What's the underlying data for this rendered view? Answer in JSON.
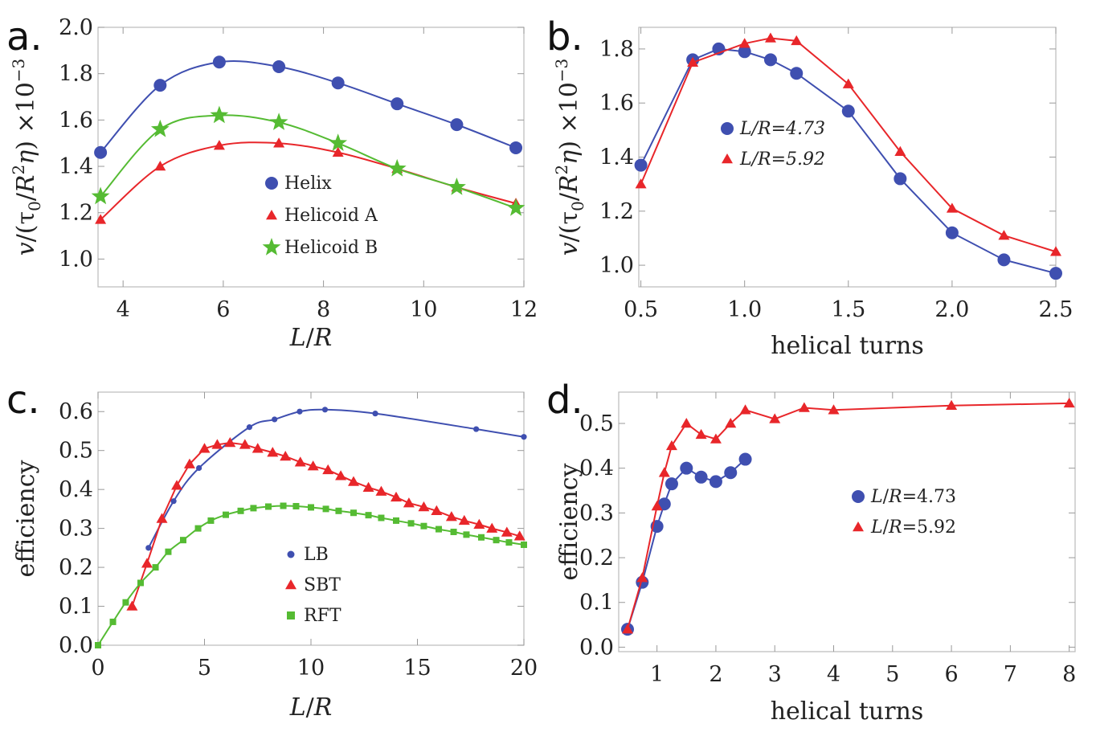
{
  "colors": {
    "blue": "#3f4fb0",
    "red": "#e8262a",
    "green": "#55bb33"
  },
  "chart_data": [
    {
      "panel_label": "a.",
      "type": "line",
      "xlabel": "L/R",
      "ylabel": "v/(τ0/R²η) ×10−3",
      "xlim": [
        3.5,
        12
      ],
      "ylim": [
        0.88,
        2.0
      ],
      "xticks": [
        4,
        6,
        8,
        10,
        12
      ],
      "yticks": [
        1.0,
        1.2,
        1.4,
        1.6,
        1.8,
        2.0
      ],
      "ytick_labels": [
        "1.0",
        "1.2",
        "1.4",
        "1.6",
        "1.8",
        "2.0"
      ],
      "legend_position": "center",
      "series": [
        {
          "name": "Helix",
          "color": "#3f4fb0",
          "marker": "circle",
          "smooth": true,
          "x": [
            3.55,
            4.74,
            5.92,
            7.11,
            8.29,
            9.47,
            10.66,
            11.84
          ],
          "y": [
            1.46,
            1.75,
            1.85,
            1.83,
            1.76,
            1.67,
            1.58,
            1.48
          ]
        },
        {
          "name": "Helicoid A",
          "color": "#e8262a",
          "marker": "triangle",
          "smooth": true,
          "x": [
            3.55,
            4.74,
            5.92,
            7.11,
            8.29,
            9.47,
            10.66,
            11.84
          ],
          "y": [
            1.17,
            1.4,
            1.49,
            1.5,
            1.46,
            1.39,
            1.31,
            1.24
          ]
        },
        {
          "name": "Helicoid B",
          "color": "#55bb33",
          "marker": "star",
          "smooth": true,
          "x": [
            3.55,
            4.74,
            5.92,
            7.11,
            8.29,
            9.47,
            10.66,
            11.84
          ],
          "y": [
            1.27,
            1.56,
            1.62,
            1.59,
            1.5,
            1.39,
            1.31,
            1.22
          ]
        }
      ]
    },
    {
      "panel_label": "b.",
      "type": "line",
      "xlabel": "helical turns",
      "ylabel": "v/(τ0/R²η) ×10−3",
      "xlim": [
        0.49,
        2.5
      ],
      "ylim": [
        0.92,
        1.88
      ],
      "xticks": [
        0.5,
        1.0,
        1.5,
        2.0,
        2.5
      ],
      "xtick_labels": [
        "0.5",
        "1.0",
        "1.5",
        "2.0",
        "2.5"
      ],
      "yticks": [
        1.0,
        1.2,
        1.4,
        1.6,
        1.8
      ],
      "ytick_labels": [
        "1.0",
        "1.2",
        "1.4",
        "1.6",
        "1.8"
      ],
      "legend_position": "center",
      "series": [
        {
          "name": "L/R=4.73",
          "color": "#3f4fb0",
          "marker": "circle",
          "x": [
            0.5,
            0.75,
            0.875,
            1.0,
            1.125,
            1.25,
            1.5,
            1.75,
            2.0,
            2.25,
            2.5
          ],
          "y": [
            1.37,
            1.76,
            1.8,
            1.79,
            1.76,
            1.71,
            1.57,
            1.32,
            1.12,
            1.02,
            0.97
          ]
        },
        {
          "name": "L/R=5.92",
          "color": "#e8262a",
          "marker": "triangle",
          "x": [
            0.5,
            0.75,
            1.0,
            1.125,
            1.25,
            1.5,
            1.75,
            2.0,
            2.25,
            2.5
          ],
          "y": [
            1.3,
            1.75,
            1.82,
            1.84,
            1.83,
            1.67,
            1.42,
            1.21,
            1.11,
            1.05
          ]
        }
      ]
    },
    {
      "panel_label": "c.",
      "type": "line",
      "xlabel": "L/R",
      "ylabel": "efficiency",
      "xlim": [
        0,
        20
      ],
      "ylim": [
        0,
        0.65
      ],
      "xticks": [
        0,
        5,
        10,
        15,
        20
      ],
      "yticks": [
        0.0,
        0.1,
        0.2,
        0.3,
        0.4,
        0.5,
        0.6
      ],
      "ytick_labels": [
        "0.0",
        "0.1",
        "0.2",
        "0.3",
        "0.4",
        "0.5",
        "0.6"
      ],
      "legend_position": "center",
      "series": [
        {
          "name": "LB",
          "color": "#3f4fb0",
          "marker": "dot",
          "smooth": true,
          "x": [
            2.37,
            3.55,
            4.74,
            7.11,
            8.29,
            9.47,
            10.66,
            13.02,
            17.76,
            20.0
          ],
          "y": [
            0.25,
            0.37,
            0.455,
            0.56,
            0.58,
            0.6,
            0.605,
            0.595,
            0.555,
            0.535
          ]
        },
        {
          "name": "SBT",
          "color": "#e8262a",
          "marker": "triangle",
          "x": [
            1.6,
            2.3,
            3.0,
            3.7,
            4.3,
            5.0,
            5.6,
            6.2,
            6.9,
            7.5,
            8.2,
            8.8,
            9.5,
            10.1,
            10.8,
            11.4,
            12.0,
            12.7,
            13.3,
            14.0,
            14.6,
            15.3,
            15.9,
            16.6,
            17.2,
            17.9,
            18.5,
            19.2,
            19.8
          ],
          "y": [
            0.1,
            0.21,
            0.325,
            0.41,
            0.465,
            0.505,
            0.515,
            0.52,
            0.515,
            0.505,
            0.495,
            0.485,
            0.47,
            0.46,
            0.45,
            0.435,
            0.42,
            0.405,
            0.395,
            0.38,
            0.365,
            0.355,
            0.345,
            0.33,
            0.32,
            0.31,
            0.3,
            0.29,
            0.28
          ]
        },
        {
          "name": "RFT",
          "color": "#55bb33",
          "marker": "square",
          "smooth": true,
          "x": [
            0.0,
            0.7,
            1.3,
            2.0,
            2.7,
            3.3,
            4.0,
            4.7,
            5.3,
            6.0,
            6.7,
            7.3,
            8.0,
            8.7,
            9.3,
            10.0,
            10.7,
            11.3,
            12.0,
            12.7,
            13.3,
            14.0,
            14.7,
            15.3,
            16.0,
            16.7,
            17.3,
            18.0,
            18.7,
            19.3,
            20.0
          ],
          "y": [
            0.0,
            0.06,
            0.11,
            0.16,
            0.2,
            0.24,
            0.27,
            0.3,
            0.32,
            0.335,
            0.345,
            0.352,
            0.356,
            0.358,
            0.357,
            0.354,
            0.35,
            0.345,
            0.34,
            0.334,
            0.327,
            0.32,
            0.313,
            0.306,
            0.298,
            0.291,
            0.284,
            0.277,
            0.27,
            0.264,
            0.258
          ]
        }
      ]
    },
    {
      "panel_label": "d.",
      "type": "line",
      "xlabel": "helical turns",
      "ylabel": "efficiency",
      "xlim": [
        0.35,
        8.1
      ],
      "ylim": [
        -0.01,
        0.57
      ],
      "xticks": [
        1,
        2,
        3,
        4,
        5,
        6,
        7,
        8
      ],
      "yticks": [
        0.0,
        0.1,
        0.2,
        0.3,
        0.4,
        0.5
      ],
      "ytick_labels": [
        "0.0",
        "0.1",
        "0.2",
        "0.3",
        "0.4",
        "0.5"
      ],
      "legend_position": "center-right",
      "series": [
        {
          "name": "L/R=4.73",
          "color": "#3f4fb0",
          "marker": "circle",
          "x": [
            0.5,
            0.75,
            1.0,
            1.125,
            1.25,
            1.5,
            1.75,
            2.0,
            2.25,
            2.5
          ],
          "y": [
            0.04,
            0.145,
            0.27,
            0.32,
            0.365,
            0.4,
            0.38,
            0.37,
            0.39,
            0.42
          ]
        },
        {
          "name": "L/R=5.92",
          "color": "#e8262a",
          "marker": "triangle",
          "x": [
            0.5,
            0.75,
            1.0,
            1.125,
            1.25,
            1.5,
            1.75,
            2.0,
            2.25,
            2.5,
            3.0,
            3.5,
            4.0,
            6.0,
            8.0
          ],
          "y": [
            0.04,
            0.155,
            0.315,
            0.39,
            0.45,
            0.5,
            0.475,
            0.465,
            0.5,
            0.53,
            0.51,
            0.535,
            0.53,
            0.54,
            0.545
          ]
        }
      ]
    }
  ]
}
